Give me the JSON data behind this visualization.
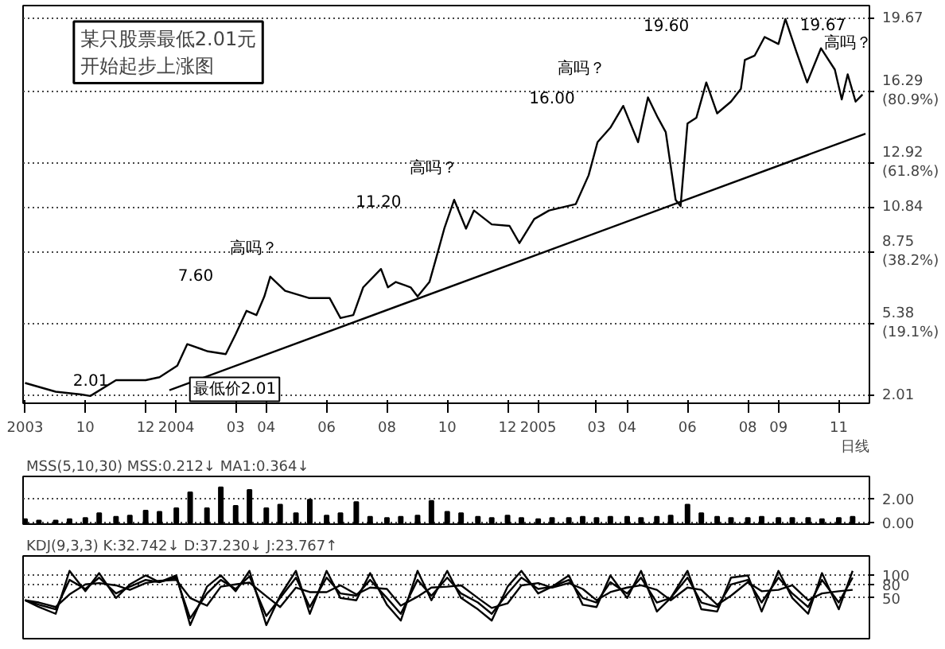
{
  "chart_data": [
    {
      "type": "line",
      "title": "某只股票最低2.01元开始起步上涨图",
      "x": [
        "2003-08-01",
        "2003-09-01",
        "2003-09-27",
        "2003-10-06",
        "2003-11-01",
        "2003-12-01",
        "2003-12-15",
        "2004-01-02",
        "2004-01-12",
        "2004-02-02",
        "2004-02-20",
        "2004-03-01",
        "2004-03-12",
        "2004-03-22",
        "2004-03-30",
        "2004-04-05",
        "2004-04-20",
        "2004-05-14",
        "2004-06-04",
        "2004-06-15",
        "2004-06-28",
        "2004-07-08",
        "2004-07-26",
        "2004-08-02",
        "2004-08-10",
        "2004-08-25",
        "2004-09-01",
        "2004-09-13",
        "2004-09-20",
        "2004-09-28",
        "2004-10-08",
        "2004-10-20",
        "2004-10-28",
        "2004-11-15",
        "2004-12-03",
        "2004-12-13",
        "2004-12-28",
        "2005-01-12",
        "2005-02-08",
        "2005-02-21",
        "2005-03-02",
        "2005-03-15",
        "2005-03-28",
        "2005-04-12",
        "2005-04-22",
        "2005-05-02",
        "2005-05-10",
        "2005-05-20",
        "2005-05-25",
        "2005-06-01",
        "2005-06-10",
        "2005-06-20",
        "2005-07-01",
        "2005-07-15",
        "2005-07-25",
        "2005-07-29",
        "2005-08-08",
        "2005-08-18",
        "2005-09-01",
        "2005-09-08",
        "2005-09-19",
        "2005-09-30",
        "2005-10-14",
        "2005-10-28",
        "2005-11-04",
        "2005-11-10",
        "2005-11-18",
        "2005-11-25"
      ],
      "series": [
        {
          "color": "#000000",
          "values": [
            2.62,
            2.21,
            2.08,
            2.01,
            2.75,
            2.75,
            2.89,
            3.43,
            4.44,
            4.1,
            3.97,
            4.9,
            6.0,
            5.8,
            6.67,
            7.6,
            6.94,
            6.6,
            6.6,
            5.66,
            5.8,
            7.1,
            7.96,
            7.1,
            7.35,
            7.1,
            6.67,
            7.35,
            8.5,
            9.85,
            11.2,
            9.85,
            10.7,
            10.05,
            9.98,
            9.17,
            10.3,
            10.7,
            11.0,
            12.35,
            13.9,
            14.58,
            15.6,
            13.9,
            16.0,
            15.05,
            14.37,
            11.2,
            10.9,
            14.78,
            15.05,
            16.7,
            15.25,
            15.8,
            16.4,
            17.75,
            17.96,
            18.83,
            18.5,
            19.67,
            18.15,
            16.7,
            18.3,
            17.3,
            15.9,
            17.08,
            15.8,
            16.13
          ]
        },
        {
          "type": "line",
          "color": "#000000",
          "x": [
            "2003-12-25",
            "2005-11-28"
          ],
          "values": [
            2.28,
            14.3
          ]
        }
      ],
      "xlim": [
        "2003-07-30",
        "2005-12-02"
      ],
      "xticks": [
        {
          "value": "2003-08",
          "label": "2003"
        },
        {
          "value": "2003-10",
          "label": "10"
        },
        {
          "value": "2003-12",
          "label": "12"
        },
        {
          "value": "2004-01",
          "label": "2004"
        },
        {
          "value": "2004-03",
          "label": "03"
        },
        {
          "value": "2004-04",
          "label": "04"
        },
        {
          "value": "2004-06",
          "label": "06"
        },
        {
          "value": "2004-08",
          "label": "08"
        },
        {
          "value": "2004-10",
          "label": "10"
        },
        {
          "value": "2004-12",
          "label": "12"
        },
        {
          "value": "2005-01",
          "label": "2005"
        },
        {
          "value": "2005-03",
          "label": "03"
        },
        {
          "value": "2005-04",
          "label": "04"
        },
        {
          "value": "2005-06",
          "label": "06"
        },
        {
          "value": "2005-08",
          "label": "08"
        },
        {
          "value": "2005-09",
          "label": "09"
        },
        {
          "value": "2005-11",
          "label": "11"
        }
      ],
      "ylim": [
        1.67,
        20.3
      ],
      "yticks": [
        2.01,
        {
          "value": 5.38,
          "label": "5.38\n(19.1%)"
        },
        {
          "value": 8.75,
          "label": "8.75\n(38.2%)"
        },
        10.84,
        {
          "value": 12.92,
          "label": "12.92\n(61.8%)"
        },
        {
          "value": 16.29,
          "label": "16.29\n(80.9%)"
        },
        19.67
      ],
      "grid": "y",
      "annotations": [
        "2.01",
        "最低价2.01",
        "7.60",
        "高吗？",
        "11.20",
        "高吗？",
        "16.00",
        "高吗？",
        "19.60",
        "19.67",
        "高吗？",
        "日线"
      ]
    },
    {
      "type": "bar",
      "title": "MSS(5,10,30) MSS:0.212↓ MA1:0.364↓",
      "x": [
        "2003-08-01",
        "2003-08-15",
        "2003-09-01",
        "2003-09-15",
        "2003-10-01",
        "2003-10-15",
        "2003-11-01",
        "2003-11-15",
        "2003-12-01",
        "2003-12-15",
        "2004-01-01",
        "2004-01-15",
        "2004-02-01",
        "2004-02-15",
        "2004-03-01",
        "2004-03-15",
        "2004-04-01",
        "2004-04-15",
        "2004-05-01",
        "2004-05-15",
        "2004-06-01",
        "2004-06-15",
        "2004-07-01",
        "2004-07-15",
        "2004-08-01",
        "2004-08-15",
        "2004-09-01",
        "2004-09-15",
        "2004-10-01",
        "2004-10-15",
        "2004-11-01",
        "2004-11-15",
        "2004-12-01",
        "2004-12-15",
        "2005-01-01",
        "2005-01-15",
        "2005-02-01",
        "2005-02-15",
        "2005-03-01",
        "2005-03-15",
        "2005-04-01",
        "2005-04-15",
        "2005-05-01",
        "2005-05-15",
        "2005-06-01",
        "2005-06-15",
        "2005-07-01",
        "2005-07-15",
        "2005-08-01",
        "2005-08-15",
        "2005-09-01",
        "2005-09-15",
        "2005-10-01",
        "2005-10-15",
        "2005-11-01",
        "2005-11-15"
      ],
      "series": [
        {
          "color": "#000000",
          "values": [
            0.3,
            0.2,
            0.2,
            0.3,
            0.4,
            0.8,
            0.5,
            0.6,
            1.0,
            0.9,
            1.2,
            2.5,
            1.2,
            2.9,
            1.4,
            2.7,
            1.2,
            1.5,
            0.8,
            1.9,
            0.6,
            0.8,
            1.7,
            0.5,
            0.4,
            0.5,
            0.6,
            1.8,
            0.9,
            0.8,
            0.5,
            0.4,
            0.6,
            0.4,
            0.3,
            0.4,
            0.4,
            0.5,
            0.4,
            0.5,
            0.5,
            0.4,
            0.5,
            0.6,
            1.5,
            0.8,
            0.5,
            0.4,
            0.4,
            0.5,
            0.4,
            0.4,
            0.4,
            0.3,
            0.4,
            0.5
          ]
        }
      ],
      "xlim": [
        "2003-07-30",
        "2005-12-02"
      ],
      "ylim": [
        -0.1,
        3.8
      ],
      "yticks": [
        {
          "value": 2,
          "label": "2.00"
        },
        {
          "value": 0,
          "label": "0.00"
        }
      ],
      "tick_labels": "y",
      "grid": "y"
    },
    {
      "type": "line",
      "title": "KDJ(9,3,3) K:32.742↓ D:37.230↓ J:23.767↑",
      "x": [
        "2003-08-01",
        "2003-08-15",
        "2003-09-01",
        "2003-09-15",
        "2003-10-01",
        "2003-10-15",
        "2003-11-01",
        "2003-11-15",
        "2003-12-01",
        "2003-12-15",
        "2004-01-01",
        "2004-01-15",
        "2004-02-01",
        "2004-02-15",
        "2004-03-01",
        "2004-03-15",
        "2004-04-01",
        "2004-04-15",
        "2004-05-01",
        "2004-05-15",
        "2004-06-01",
        "2004-06-15",
        "2004-07-01",
        "2004-07-15",
        "2004-08-01",
        "2004-08-15",
        "2004-09-01",
        "2004-09-15",
        "2004-10-01",
        "2004-10-15",
        "2004-11-01",
        "2004-11-15",
        "2004-12-01",
        "2004-12-15",
        "2005-01-01",
        "2005-01-15",
        "2005-02-01",
        "2005-02-15",
        "2005-03-01",
        "2005-03-15",
        "2005-04-01",
        "2005-04-15",
        "2005-05-01",
        "2005-05-15",
        "2005-06-01",
        "2005-06-15",
        "2005-07-01",
        "2005-07-15",
        "2005-08-01",
        "2005-08-15",
        "2005-09-01",
        "2005-09-15",
        "2005-10-01",
        "2005-10-15",
        "2005-11-01",
        "2005-11-15"
      ],
      "series": [
        {
          "color": "#000000",
          "values": [
            45,
            35,
            25,
            90,
            70,
            95,
            60,
            75,
            90,
            85,
            95,
            5,
            60,
            90,
            70,
            98,
            10,
            50,
            95,
            30,
            95,
            60,
            55,
            90,
            50,
            15,
            90,
            55,
            95,
            60,
            40,
            15,
            60,
            95,
            70,
            75,
            90,
            50,
            40,
            85,
            60,
            95,
            40,
            50,
            95,
            40,
            30,
            80,
            90,
            40,
            95,
            60,
            30,
            90,
            40,
            95
          ]
        },
        {
          "color": "#000000",
          "values": [
            45,
            40,
            30,
            58,
            80,
            83,
            78,
            68,
            83,
            88,
            90,
            50,
            33,
            75,
            80,
            84,
            54,
            30,
            73,
            63,
            63,
            78,
            58,
            73,
            70,
            33,
            53,
            73,
            75,
            78,
            50,
            28,
            38,
            78,
            83,
            73,
            83,
            70,
            45,
            63,
            73,
            78,
            68,
            45,
            73,
            68,
            35,
            55,
            85,
            65,
            68,
            78,
            45,
            60,
            65,
            68
          ]
        },
        {
          "color": "#000000",
          "values": [
            45,
            30,
            15,
            110,
            65,
            105,
            50,
            80,
            100,
            85,
            100,
            -10,
            75,
            100,
            65,
            110,
            -10,
            55,
            110,
            15,
            110,
            50,
            45,
            105,
            35,
            0,
            110,
            45,
            110,
            50,
            25,
            0,
            75,
            110,
            60,
            75,
            100,
            35,
            30,
            100,
            50,
            110,
            20,
            50,
            110,
            25,
            20,
            95,
            100,
            20,
            110,
            50,
            15,
            105,
            25,
            110
          ]
        }
      ],
      "xlim": [
        "2003-07-30",
        "2005-12-02"
      ],
      "ylim": [
        -40,
        143
      ],
      "yticks": [
        100,
        80,
        50
      ],
      "tick_labels": "y",
      "grid": "y"
    }
  ]
}
